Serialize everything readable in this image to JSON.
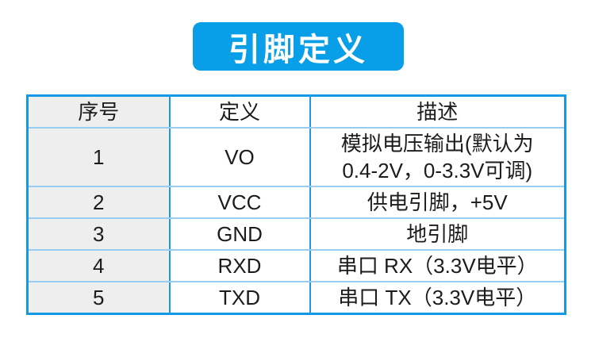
{
  "banner": {
    "title": "引脚定义",
    "bg_color": "#089ee8",
    "text_color": "#ffffff"
  },
  "pin_table": {
    "headers": {
      "index": "序号",
      "definition": "定义",
      "description": "描述"
    },
    "rows": [
      {
        "index": "1",
        "definition": "VO",
        "description": "模拟电压输出(默认为\n0.4-2V，0-3.3V可调)"
      },
      {
        "index": "2",
        "definition": "VCC",
        "description": "供电引脚，+5V"
      },
      {
        "index": "3",
        "definition": "GND",
        "description": "地引脚"
      },
      {
        "index": "4",
        "definition": "RXD",
        "description": "串口 RX（3.3V电平）"
      },
      {
        "index": "5",
        "definition": "TXD",
        "description": "串口 TX（3.3V电平）"
      }
    ],
    "colors": {
      "outer_border": "#149ae4",
      "vertical_line": "#1f9ae2",
      "horizontal_line": "#98cdf2",
      "index_column_bg": "#eeeeee",
      "text": "#1c1c1c"
    }
  }
}
